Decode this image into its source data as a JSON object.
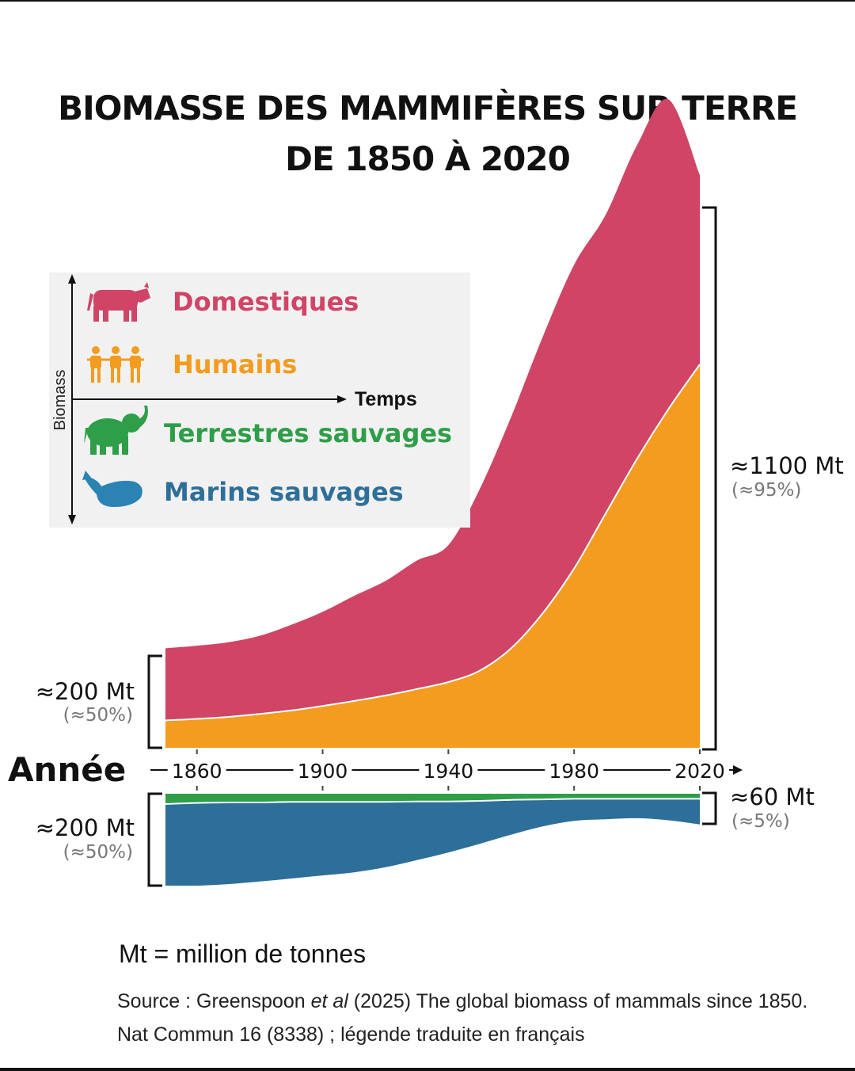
{
  "title_line1": "BIOMASSE DES MAMMIFÈRES SUR TERRE",
  "title_line2": "DE 1850 À 2020",
  "legend": {
    "y_axis_label": "Biomass",
    "x_axis_label": "Temps",
    "items": [
      {
        "label": "Domestiques",
        "color": "#d04466",
        "icon": "cow-icon"
      },
      {
        "label": "Humains",
        "color": "#f39c1f",
        "icon": "people-icon"
      },
      {
        "label": "Terrestres sauvages",
        "color": "#2e9e48",
        "icon": "elephant-icon"
      },
      {
        "label": "Marins sauvages",
        "color": "#2d6f99",
        "icon": "whale-icon"
      }
    ]
  },
  "x_axis_label": "Année",
  "annotations": {
    "top_start": {
      "value": "≈200 Mt",
      "pct": "(≈50%)"
    },
    "top_end": {
      "value": "≈1100 Mt",
      "pct": "(≈95%)"
    },
    "bottom_start": {
      "value": "≈200 Mt",
      "pct": "(≈50%)"
    },
    "bottom_end": {
      "value": "≈60 Mt",
      "pct": "(≈5%)"
    }
  },
  "unit_note": "Mt = million de tonnes",
  "source": {
    "prefix": "Source : Greenspoon ",
    "italic": "et al",
    "rest": " (2025) The global biomass of mammals since 1850. Nat Commun 16 (8338) ; légende traduite en français"
  },
  "chart_data": {
    "type": "area",
    "x": [
      1850,
      1860,
      1870,
      1880,
      1890,
      1900,
      1910,
      1920,
      1930,
      1940,
      1950,
      1960,
      1970,
      1980,
      1990,
      2000,
      2010,
      2020
    ],
    "tick_labels": [
      "1860",
      "1900",
      "1940",
      "1980",
      "2020"
    ],
    "ticks": [
      1860,
      1900,
      1940,
      1980,
      2020
    ],
    "upper_panel": {
      "ylim": [
        0,
        1150
      ],
      "series": [
        {
          "name": "Humains",
          "color": "#f39c1f",
          "values": [
            55,
            58,
            62,
            68,
            75,
            84,
            94,
            105,
            118,
            132,
            155,
            200,
            270,
            360,
            470,
            580,
            680,
            770
          ]
        },
        {
          "name": "Domestiques",
          "color": "#d04466",
          "values": [
            145,
            147,
            150,
            157,
            172,
            189,
            211,
            230,
            258,
            275,
            365,
            465,
            555,
            610,
            600,
            630,
            622,
            380
          ]
        }
      ]
    },
    "lower_panel": {
      "ylim": [
        0,
        215
      ],
      "series": [
        {
          "name": "Terrestres sauvages",
          "color": "#2e9e48",
          "values": [
            20,
            18,
            17,
            17,
            16,
            16,
            16,
            16,
            15,
            15,
            14,
            12,
            11,
            10,
            10,
            10,
            10,
            10
          ]
        },
        {
          "name": "Marins sauvages",
          "color": "#2d6f99",
          "values": [
            160,
            162,
            160,
            155,
            150,
            144,
            138,
            128,
            115,
            100,
            84,
            68,
            53,
            43,
            40,
            38,
            42,
            50
          ]
        }
      ]
    }
  }
}
